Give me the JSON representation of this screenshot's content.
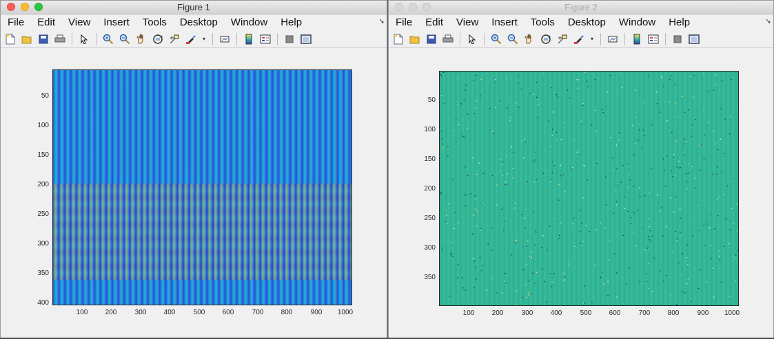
{
  "windows": [
    {
      "title": "Figure 1",
      "menu": [
        "File",
        "Edit",
        "View",
        "Insert",
        "Tools",
        "Desktop",
        "Window",
        "Help"
      ],
      "active": true,
      "axes": {
        "yticks": [
          "50",
          "100",
          "150",
          "200",
          "250",
          "300",
          "350",
          "400"
        ],
        "xticks": [
          "100",
          "200",
          "300",
          "400",
          "500",
          "600",
          "700",
          "800",
          "900",
          "1000"
        ],
        "xlim": [
          1,
          1024
        ],
        "ylim": [
          1,
          400
        ],
        "image_description": "vertical striped interference pattern, colormap parula, brighter yellow band around rows 200–330"
      }
    },
    {
      "title": "Figure 2",
      "menu": [
        "File",
        "Edit",
        "View",
        "Insert",
        "Tools",
        "Desktop",
        "Window",
        "Help"
      ],
      "active": false,
      "axes": {
        "yticks": [
          "50",
          "100",
          "150",
          "200",
          "250",
          "300",
          "350"
        ],
        "xticks": [
          "100",
          "200",
          "300",
          "400",
          "500",
          "600",
          "700",
          "800",
          "900",
          "1000"
        ],
        "xlim": [
          1,
          1024
        ],
        "ylim": [
          1,
          400
        ],
        "image_description": "mostly uniform teal field with scattered dark and yellow speckle points"
      }
    }
  ],
  "toolbar_icons": [
    "new-figure-icon",
    "open-icon",
    "save-icon",
    "print-icon",
    "pointer-icon",
    "zoom-in-icon",
    "zoom-out-icon",
    "pan-icon",
    "rotate-3d-icon",
    "data-cursor-icon",
    "brush-icon",
    "link-plot-icon",
    "colorbar-icon",
    "legend-icon",
    "hide-plot-tools-icon",
    "show-plot-tools-icon"
  ],
  "colors": {
    "parula_dark": "#2a4dd4",
    "parula_mid": "#1fb7c6",
    "parula_yellow": "#d6c446",
    "teal_field": "#34b89a"
  }
}
